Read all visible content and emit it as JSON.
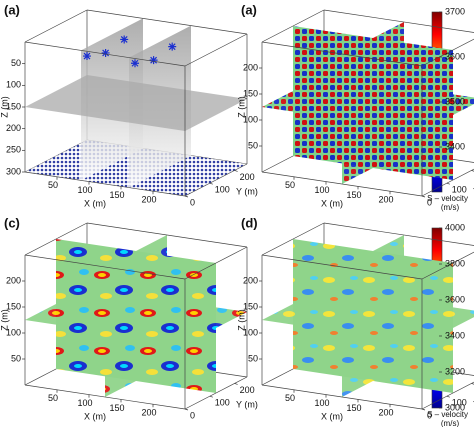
{
  "panels": [
    {
      "label": "(a)",
      "style": "model",
      "x_label": "X (m)",
      "y_label": "Y (m)",
      "z_label": "Z (m)",
      "xlim": [
        0,
        250
      ],
      "ylim": [
        0,
        250
      ],
      "zlim": [
        300,
        0
      ],
      "xticks": [
        50,
        100,
        150,
        200
      ],
      "yticks": [
        0,
        100,
        200
      ],
      "zticks": [
        50,
        100,
        150,
        200,
        250,
        300
      ]
    },
    {
      "label": "(a)",
      "style": "checker",
      "x_label": "X (m)",
      "y_label": "Y (m)",
      "z_label": "Z (m)",
      "xlim": [
        0,
        250
      ],
      "ylim": [
        0,
        250
      ],
      "zlim": [
        0,
        250
      ],
      "xticks": [
        50,
        100,
        150,
        200
      ],
      "yticks": [
        0,
        100,
        200
      ],
      "zticks": [
        50,
        100,
        150,
        200
      ]
    },
    {
      "label": "(c)",
      "style": "strong",
      "x_label": "X (m)",
      "y_label": "Y (m)",
      "z_label": "Z (m)",
      "xlim": [
        0,
        250
      ],
      "ylim": [
        0,
        250
      ],
      "zlim": [
        0,
        250
      ],
      "xticks": [
        50,
        100,
        150,
        200
      ],
      "yticks": [
        0,
        100,
        200
      ],
      "zticks": [
        50,
        100,
        150,
        200
      ]
    },
    {
      "label": "(d)",
      "style": "weak",
      "x_label": "X (m)",
      "y_label": "Y (m)",
      "z_label": "Z (m)",
      "xlim": [
        0,
        250
      ],
      "ylim": [
        0,
        250
      ],
      "zlim": [
        0,
        250
      ],
      "xticks": [
        50,
        100,
        150,
        200
      ],
      "yticks": [
        0,
        100,
        200
      ],
      "zticks": [
        50,
        100,
        150,
        200
      ]
    }
  ],
  "colorbars": [
    {
      "label": "S – velocity",
      "unit": "(m/s)",
      "lim": [
        3300,
        3700
      ],
      "ticks": [
        3400,
        3500,
        3600,
        3700
      ]
    },
    {
      "label": "S – velocity",
      "unit": "(m/s)",
      "lim": [
        3000,
        4000
      ],
      "ticks": [
        3000,
        3200,
        3400,
        3600,
        3800,
        4000
      ]
    }
  ]
}
